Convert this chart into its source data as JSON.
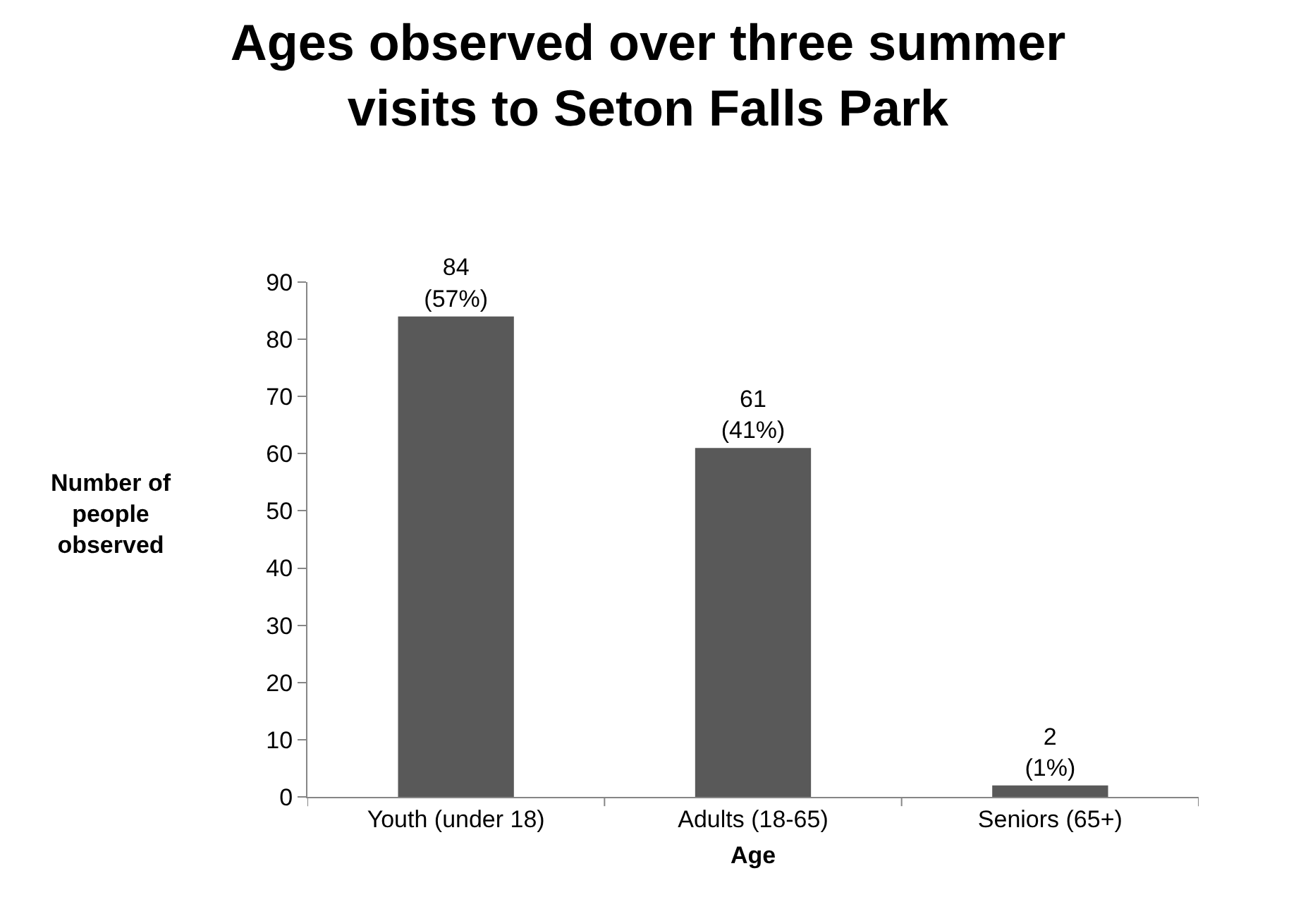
{
  "chart_data": {
    "type": "bar",
    "title": "Ages observed over three summer\nvisits to Seton Falls Park",
    "xlabel": "Age",
    "ylabel": "Number of\npeople\nobserved",
    "categories": [
      "Youth (under 18)",
      "Adults (18-65)",
      "Seniors (65+)"
    ],
    "values": [
      84,
      61,
      2
    ],
    "value_labels": [
      "84\n(57%)",
      "61\n(41%)",
      "2\n(1%)"
    ],
    "color": "#595959",
    "ylim": [
      0,
      90
    ],
    "yticks": [
      0,
      10,
      20,
      30,
      40,
      50,
      60,
      70,
      80,
      90
    ],
    "grid": false,
    "legend": false
  }
}
